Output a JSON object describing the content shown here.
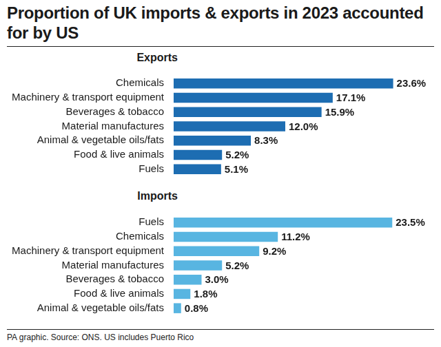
{
  "title": "Proportion of UK imports & exports in 2023 accounted for by US",
  "source": "PA graphic. Source: ONS. US includes Puerto Rico",
  "chart_data": [
    {
      "type": "bar",
      "title": "Exports",
      "orientation": "horizontal",
      "categories": [
        "Chemicals",
        "Machinery & transport equipment",
        "Beverages & tobacco",
        "Material manufactures",
        "Animal & vegetable oils/fats",
        "Food & live animals",
        "Fuels"
      ],
      "values": [
        23.6,
        17.1,
        15.9,
        12.0,
        8.3,
        5.2,
        5.1
      ],
      "value_labels": [
        "23.6%",
        "17.1%",
        "15.9%",
        "12.0%",
        "8.3%",
        "5.2%",
        "5.1%"
      ],
      "color": "#1d6db2",
      "xlim": [
        0,
        28
      ],
      "grid": false,
      "data_labels": true,
      "tick_labels": "y"
    },
    {
      "type": "bar",
      "title": "Imports",
      "orientation": "horizontal",
      "categories": [
        "Fuels",
        "Chemicals",
        "Machinery & transport equipment",
        "Material manufactures",
        "Beverages & tobacco",
        "Food & live animals",
        "Animal & vegetable oils/fats"
      ],
      "values": [
        23.5,
        11.2,
        9.2,
        5.2,
        3.0,
        1.8,
        0.8
      ],
      "value_labels": [
        "23.5%",
        "11.2%",
        "9.2%",
        "5.2%",
        "3.0%",
        "1.8%",
        "0.8%"
      ],
      "color": "#58b5e1",
      "xlim": [
        0,
        28
      ],
      "grid": false,
      "data_labels": true,
      "tick_labels": "y"
    }
  ]
}
